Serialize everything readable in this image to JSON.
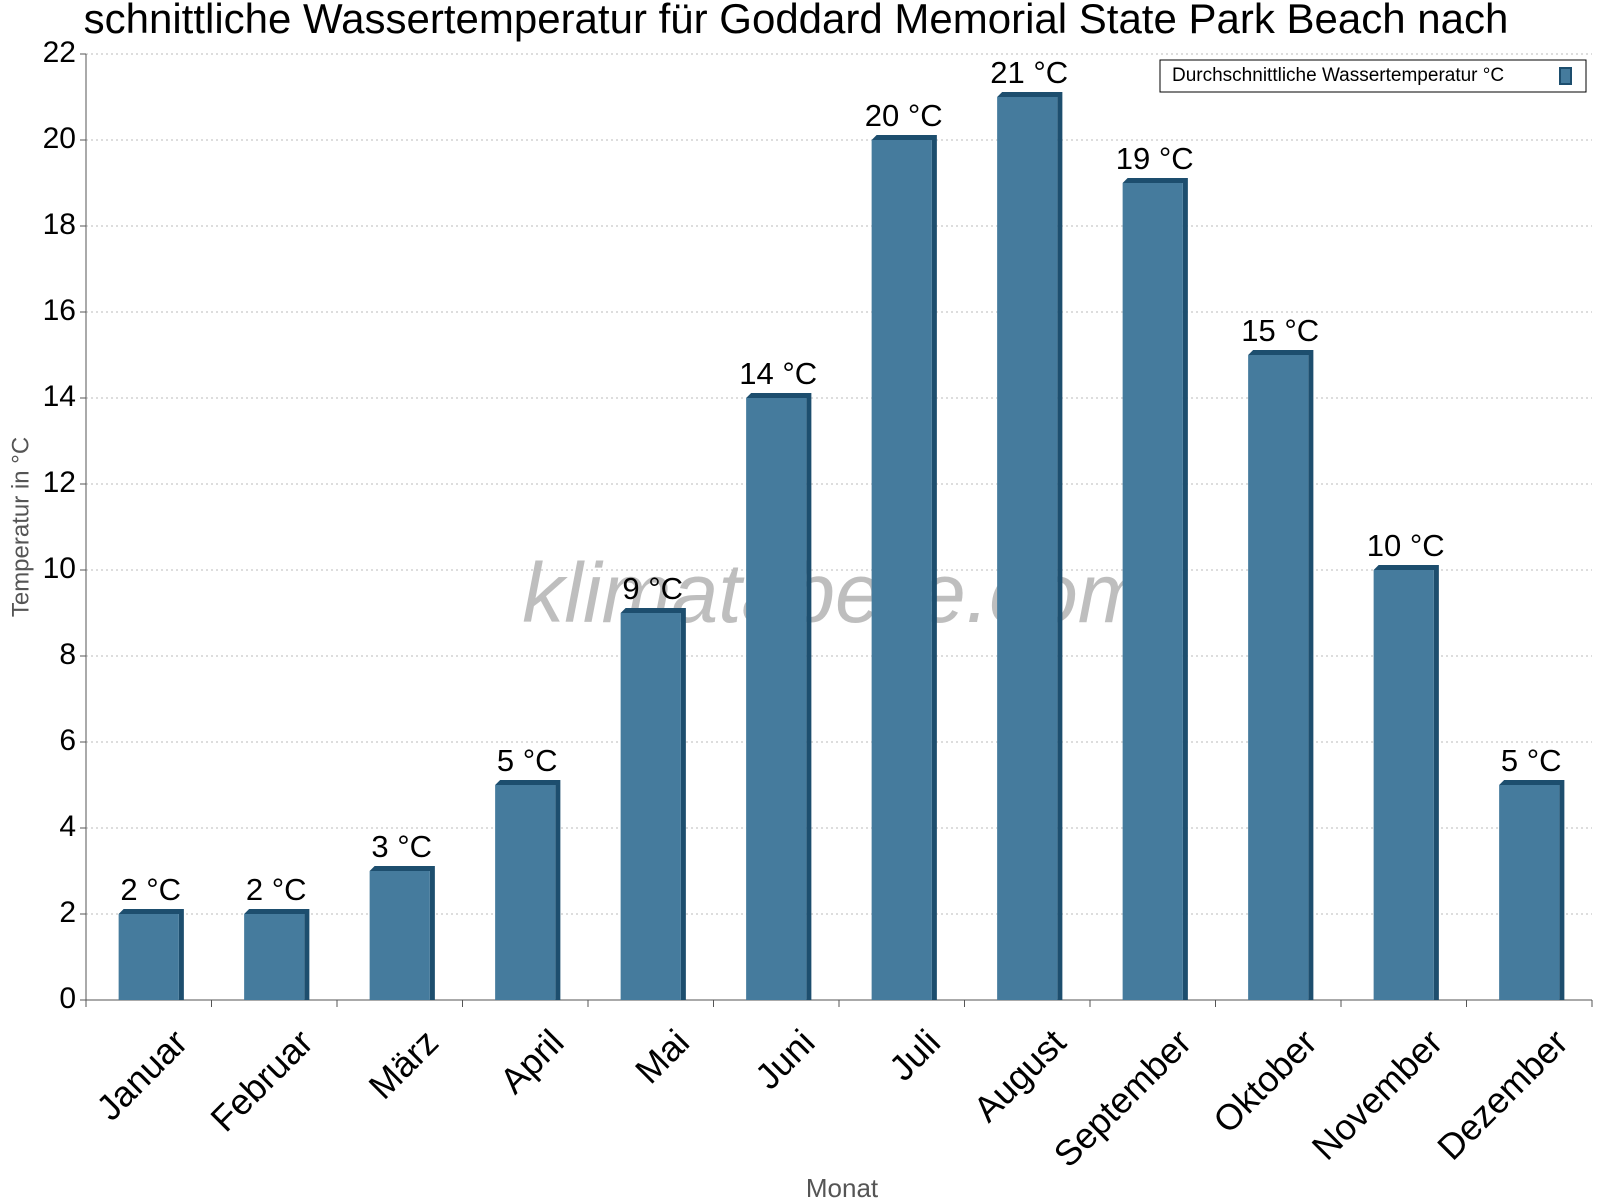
{
  "chart_data": {
    "type": "bar",
    "title": "schnittliche Wassertemperatur für Goddard Memorial State Park Beach nach",
    "watermark": "klimatabelle.com",
    "x_label": "Monat",
    "y_label": "Temperatur in °C",
    "categories": [
      "Januar",
      "Februar",
      "März",
      "April",
      "Mai",
      "Juni",
      "Juli",
      "August",
      "September",
      "Oktober",
      "November",
      "Dezember"
    ],
    "series": [
      {
        "name": "Durchschnittliche Wassertemperatur °C",
        "color": "#457b9d",
        "side_color": "#1d4e6e",
        "values": [
          2,
          2,
          3,
          5,
          9,
          14,
          20,
          21,
          19,
          15,
          10,
          5
        ],
        "value_labels": [
          "2 °C",
          "2 °C",
          "3 °C",
          "5 °C",
          "9 °C",
          "14 °C",
          "20 °C",
          "21 °C",
          "19 °C",
          "15 °C",
          "10 °C",
          "5 °C"
        ]
      }
    ],
    "ylim": [
      0,
      22
    ],
    "yticks": [
      0,
      2,
      4,
      6,
      8,
      10,
      12,
      14,
      16,
      18,
      20,
      22
    ],
    "grid": true,
    "legend": "top-right"
  }
}
